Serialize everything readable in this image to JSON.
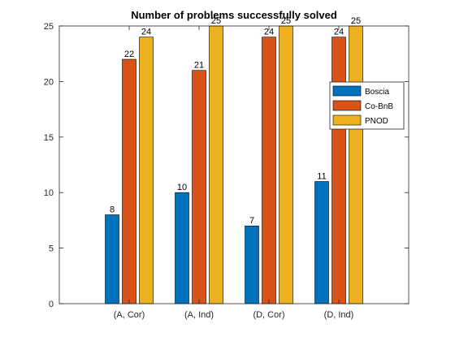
{
  "chart_data": {
    "type": "bar",
    "title": "Number of problems successfully solved",
    "xlabel": "",
    "ylabel": "",
    "categories": [
      "(A, Cor)",
      "(A, Ind)",
      "(D, Cor)",
      "(D, Ind)"
    ],
    "ylim": [
      0,
      25
    ],
    "yticks": [
      0,
      5,
      10,
      15,
      20,
      25
    ],
    "series": [
      {
        "name": "Boscia",
        "color": "#0072bd",
        "values": [
          8,
          10,
          7,
          11
        ]
      },
      {
        "name": "Co-BnB",
        "color": "#d95319",
        "values": [
          22,
          21,
          24,
          24
        ]
      },
      {
        "name": "PNOD",
        "color": "#edb120",
        "values": [
          24,
          25,
          25,
          25
        ]
      }
    ],
    "data_labels": [
      [
        "8",
        "10",
        "7",
        "11"
      ],
      [
        "22",
        "21",
        "24",
        "24"
      ],
      [
        "24",
        "25",
        "25",
        "25"
      ]
    ],
    "legend_position": "top-right",
    "grid": false
  }
}
